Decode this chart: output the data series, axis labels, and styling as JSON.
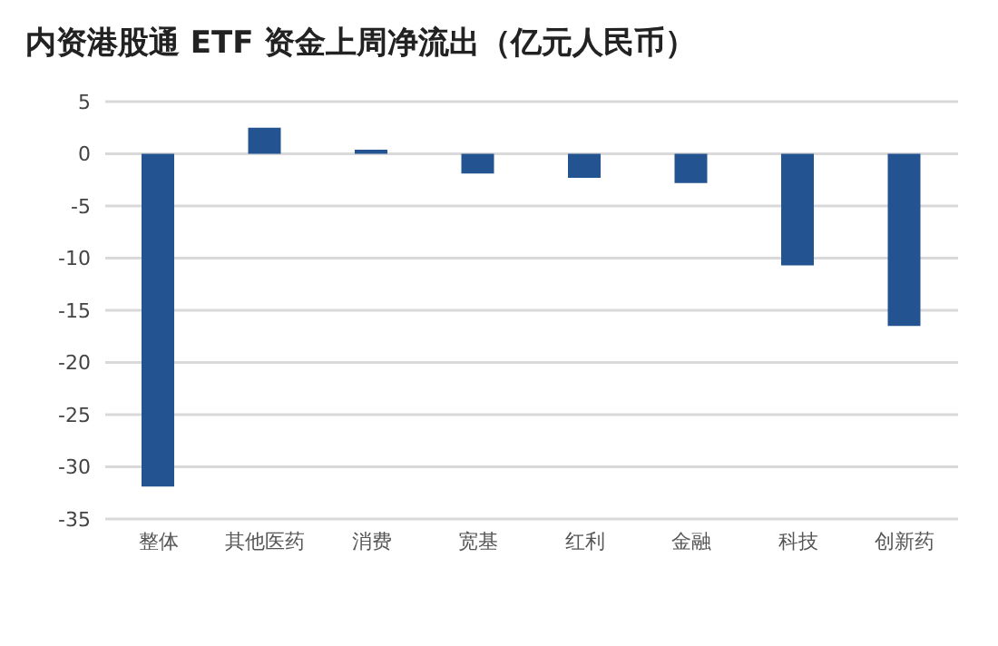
{
  "chart_data": {
    "type": "bar",
    "title": "内资港股通 ETF 资金上周净流出（亿元人民币）",
    "categories": [
      "整体",
      "其他医药",
      "消费",
      "宽基",
      "红利",
      "金融",
      "科技",
      "创新药"
    ],
    "values": [
      -31.9,
      2.5,
      0.4,
      -1.9,
      -2.3,
      -2.8,
      -10.7,
      -16.5
    ],
    "color": "#235491",
    "ylim": [
      -35,
      5
    ],
    "yticks": [
      -35,
      -30,
      -25,
      -20,
      -15,
      -10,
      -5,
      0,
      5
    ],
    "grid": "y"
  }
}
